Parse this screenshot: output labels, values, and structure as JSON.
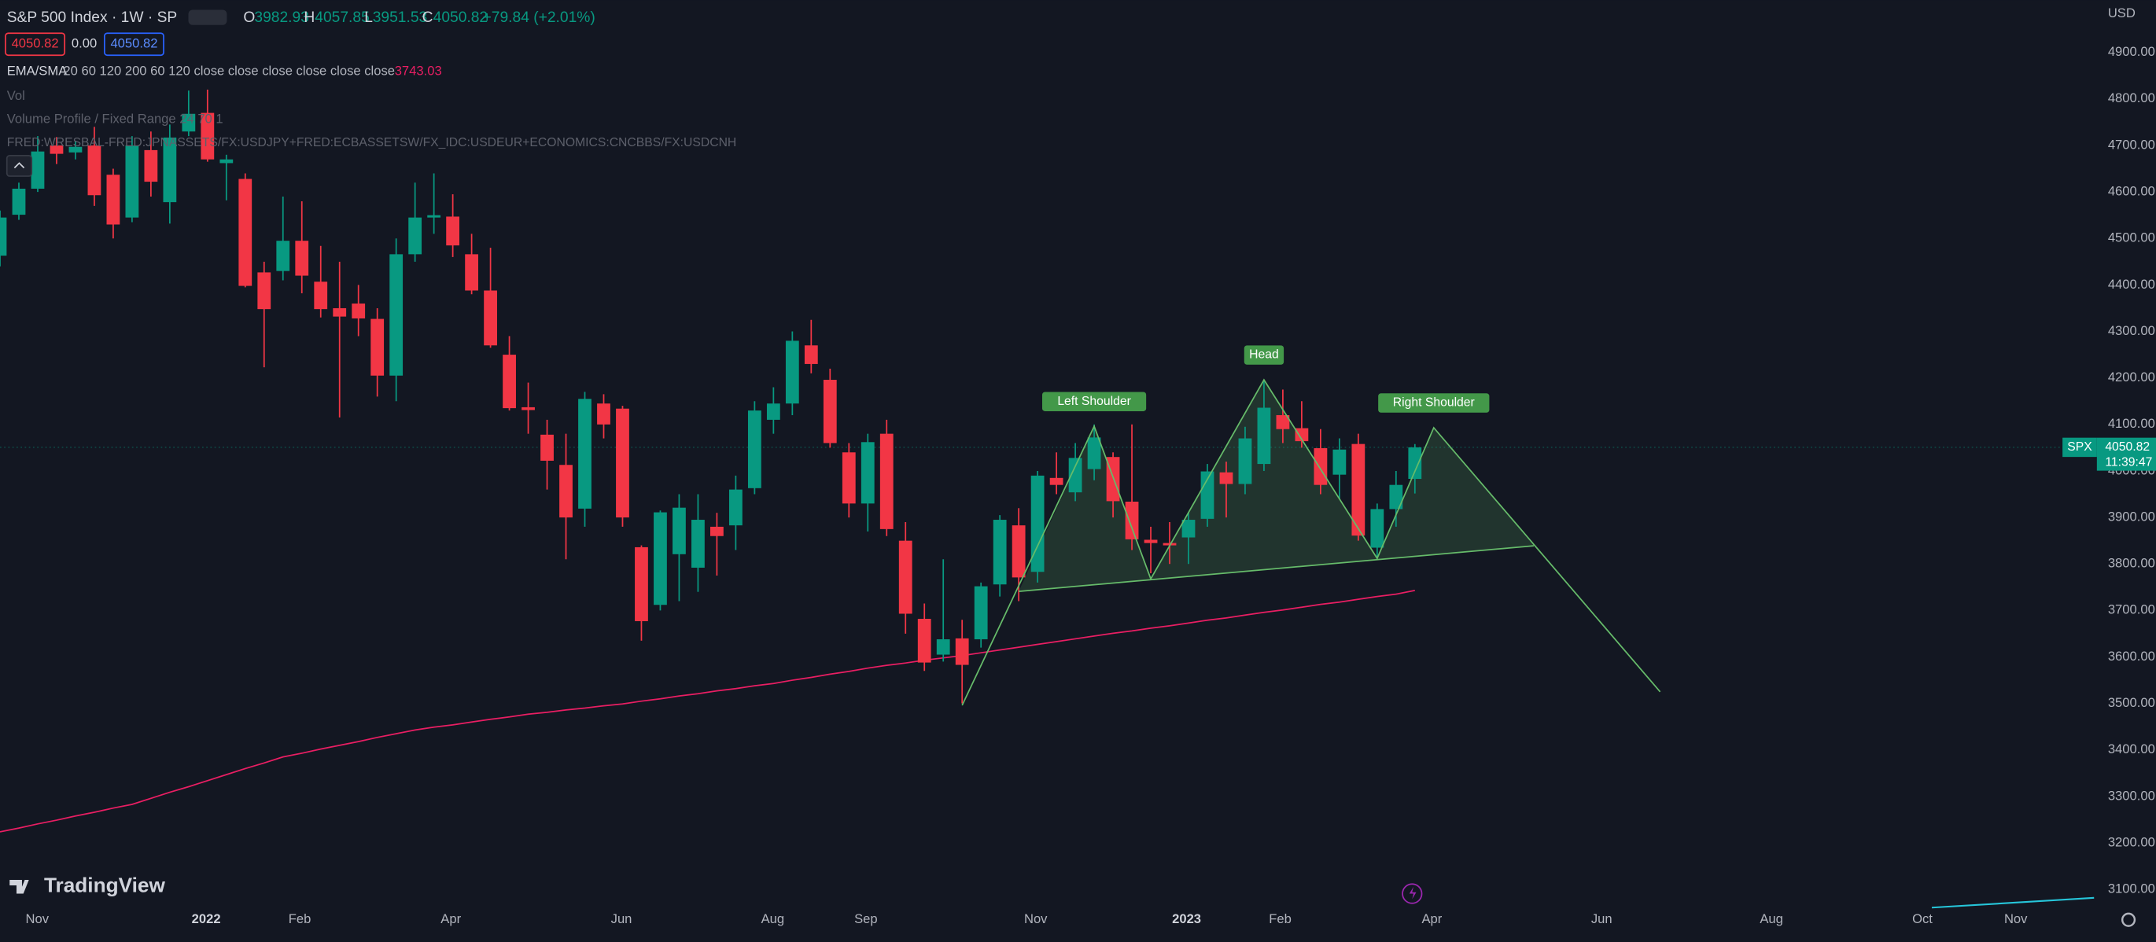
{
  "chart_data": {
    "type": "candlestick",
    "title": "S&P 500 Index · 1W · SP",
    "ohlc_letters": [
      "O",
      "H",
      "L",
      "C"
    ],
    "change": "+79.84 (+2.01%)",
    "currency": "USD",
    "symbol": "SPX",
    "countdown": "11:39:47",
    "zero_value": "0.00",
    "brand": "TradingView",
    "indicators": {
      "vol": "Vol",
      "volume_profile": "Volume Profile / Fixed Range 24 70 1"
    },
    "up_color": "#089981",
    "down_color": "#f23645",
    "grid": true,
    "xlim": [
      0,
      111.15
    ],
    "xticks": [
      {
        "value": 1.97,
        "label": "Nov"
      },
      {
        "value": 10.93,
        "label": "2022"
      },
      {
        "value": 15.89,
        "label": "Feb"
      },
      {
        "value": 23.9,
        "label": "Apr"
      },
      {
        "value": 32.94,
        "label": "Jun"
      },
      {
        "value": 40.96,
        "label": "Aug"
      },
      {
        "value": 45.9,
        "label": "Sep"
      },
      {
        "value": 54.9,
        "label": "Nov"
      },
      {
        "value": 62.9,
        "label": "2023"
      },
      {
        "value": 67.86,
        "label": "Feb"
      },
      {
        "value": 75.9,
        "label": "Apr"
      },
      {
        "value": 84.9,
        "label": "Jun"
      },
      {
        "value": 93.9,
        "label": "Aug"
      },
      {
        "value": 101.9,
        "label": "Oct"
      },
      {
        "value": 106.85,
        "label": "Nov"
      }
    ],
    "ylim": [
      3055.5,
      5012.3
    ],
    "yticks": [
      {
        "value": 4900,
        "label": "4900.00"
      },
      {
        "value": 4800,
        "label": "4800.00"
      },
      {
        "value": 4700,
        "label": "4700.00"
      },
      {
        "value": 4600,
        "label": "4600.00"
      },
      {
        "value": 4500,
        "label": "4500.00"
      },
      {
        "value": 4400,
        "label": "4400.00"
      },
      {
        "value": 4300,
        "label": "4300.00"
      },
      {
        "value": 4200,
        "label": "4200.00"
      },
      {
        "value": 4100,
        "label": "4100.00"
      },
      {
        "value": 4000,
        "label": "4000.00"
      },
      {
        "value": 3900,
        "label": "3900.00"
      },
      {
        "value": 3800,
        "label": "3800.00"
      },
      {
        "value": 3700,
        "label": "3700.00"
      },
      {
        "value": 3600,
        "label": "3600.00"
      },
      {
        "value": 3500,
        "label": "3500.00"
      },
      {
        "value": 3400,
        "label": "3400.00"
      },
      {
        "value": 3300,
        "label": "3300.00"
      },
      {
        "value": 3200,
        "label": "3200.00"
      },
      {
        "value": 3100,
        "label": "3100.00"
      }
    ],
    "open": [
      4463,
      4551,
      4607,
      4700,
      4685,
      4700,
      4637,
      4545,
      4690,
      4578,
      4730,
      4770,
      4662,
      4628,
      4427,
      4430,
      4495,
      4407,
      4350,
      4360,
      4327,
      4205,
      4466,
      4545,
      4547,
      4466,
      4388,
      4250,
      4137,
      4078,
      4013,
      3919,
      4145,
      4134,
      3836,
      3712,
      3821,
      3792,
      3880,
      3883,
      3963,
      4110,
      4145,
      4270,
      4196,
      4040,
      3930,
      4080,
      3850,
      3682,
      3605,
      3640,
      3638,
      3756,
      3883,
      3783,
      3985,
      3954,
      4004,
      4030,
      3934,
      3852,
      3845,
      3857,
      3897,
      3997,
      3972,
      4015,
      4120,
      4092,
      4049,
      3992,
      4058,
      3835,
      3918,
      3982.93
    ],
    "high": [
      4560,
      4620,
      4720,
      4718,
      4710,
      4740,
      4650,
      4720,
      4730,
      4745,
      4818,
      4820,
      4680,
      4640,
      4450,
      4590,
      4580,
      4484,
      4450,
      4400,
      4350,
      4500,
      4620,
      4640,
      4595,
      4510,
      4480,
      4290,
      4190,
      4110,
      4080,
      4170,
      4165,
      4140,
      3840,
      3915,
      3950,
      3950,
      3910,
      3990,
      4150,
      4180,
      4300,
      4325,
      4220,
      4060,
      4080,
      4110,
      3890,
      3715,
      3810,
      3680,
      3760,
      3905,
      3920,
      4000,
      4040,
      4060,
      4100,
      4040,
      4100,
      3880,
      3890,
      3910,
      4015,
      4020,
      4095,
      4195,
      4175,
      4150,
      4090,
      4070,
      4080,
      3930,
      4000,
      4057.85
    ],
    "low": [
      4440,
      4540,
      4600,
      4660,
      4670,
      4570,
      4500,
      4535,
      4590,
      4532,
      4720,
      4665,
      4582,
      4395,
      4223,
      4410,
      4382,
      4330,
      4115,
      4290,
      4160,
      4150,
      4450,
      4510,
      4460,
      4380,
      4265,
      4130,
      4080,
      3960,
      3810,
      3880,
      4070,
      3880,
      3635,
      3700,
      3720,
      3740,
      3775,
      3830,
      3950,
      4080,
      4120,
      4210,
      4050,
      3900,
      3870,
      3860,
      3650,
      3570,
      3590,
      3500,
      3620,
      3730,
      3720,
      3760,
      3950,
      3935,
      3980,
      3900,
      3830,
      3780,
      3800,
      3800,
      3880,
      3900,
      3950,
      4000,
      4060,
      4050,
      3950,
      3940,
      3850,
      3810,
      3880,
      3951.53
    ],
    "close": [
      4545,
      4607,
      4687,
      4682,
      4697,
      4593,
      4530,
      4700,
      4622,
      4717,
      4768,
      4670,
      4670,
      4398,
      4348,
      4495,
      4420,
      4348,
      4332,
      4328,
      4205,
      4466,
      4545,
      4550,
      4485,
      4388,
      4270,
      4135,
      4131,
      4022,
      3900,
      4155,
      4100,
      3900,
      3677,
      3911,
      3921,
      3895,
      3860,
      3960,
      4130,
      4145,
      4280,
      4230,
      4060,
      3930,
      4062,
      3875,
      3693,
      3588,
      3638,
      3583,
      3752,
      3895,
      3771,
      3990,
      3970,
      4028,
      4072,
      3935,
      3853,
      3845,
      3840,
      3895,
      3999,
      3972,
      4070,
      4136,
      4090,
      4064,
      3970,
      4046,
      3861,
      3918,
      3970,
      4050.82
    ],
    "series": [
      {
        "name": "EMA/SMA",
        "params": "20 60 120 200 60 120 close close close close close close",
        "color": "#e91e63",
        "values": [
          3224,
          3232,
          3241,
          3249,
          3258,
          3266,
          3275,
          3283,
          3296,
          3309,
          3321,
          3334,
          3347,
          3360,
          3372,
          3385,
          3393,
          3402,
          3410,
          3418,
          3427,
          3435,
          3443,
          3449,
          3454,
          3460,
          3466,
          3471,
          3477,
          3481,
          3486,
          3490,
          3495,
          3499,
          3505,
          3510,
          3516,
          3521,
          3527,
          3532,
          3538,
          3543,
          3550,
          3556,
          3563,
          3569,
          3576,
          3582,
          3587,
          3593,
          3598,
          3603,
          3609,
          3615,
          3621,
          3627,
          3633,
          3639,
          3645,
          3651,
          3656,
          3662,
          3667,
          3673,
          3679,
          3684,
          3690,
          3696,
          3701,
          3707,
          3713,
          3718,
          3724,
          3730,
          3735,
          3743.03
        ]
      },
      {
        "name": "FRED:WRESBAL-FRED:JPNASSETS/FX:USDJPY+FRED:ECBASSETSW/FX_IDC:USDEUR+ECONOMICS:CNCBBS/FX:USDCNH",
        "color": "#26c6da",
        "x": [
          102.4,
          111
        ],
        "values": [
          3061,
          3082
        ]
      }
    ],
    "pattern": {
      "color": "#66bb6a",
      "x": [
        51,
        58,
        61,
        67,
        73,
        76,
        88
      ],
      "values": [
        3496,
        4096,
        3768,
        4196,
        3812,
        4093,
        3525
      ],
      "labels": [
        null,
        "Left Shoulder",
        null,
        "Head",
        null,
        "Right Shoulder",
        null
      ]
    },
    "neckline": {
      "x": [
        54,
        81.3
      ],
      "values": [
        3741,
        3839
      ]
    }
  }
}
